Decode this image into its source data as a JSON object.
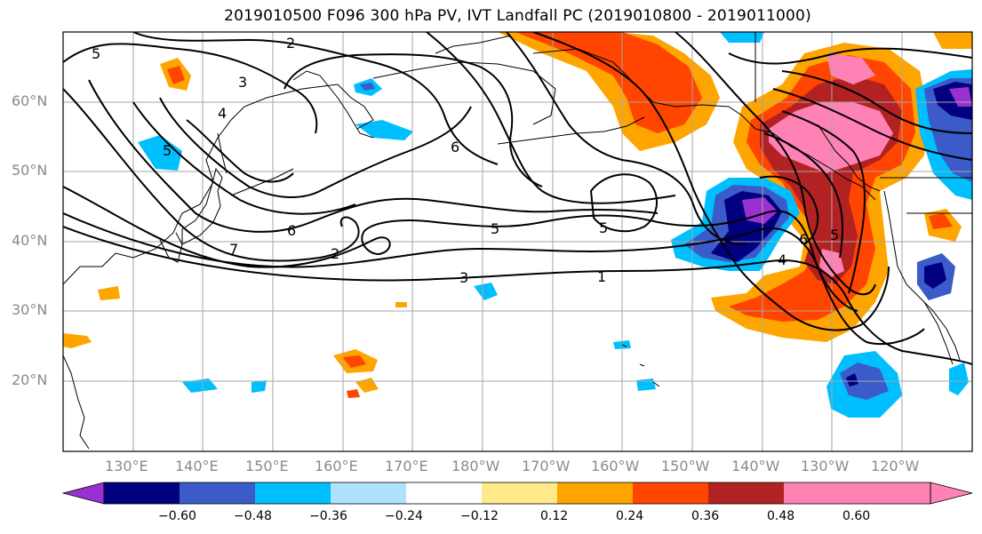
{
  "title": "2019010500 F096 300 hPa PV, IVT Landfall PC (2019010800 - 2019011000)",
  "latitude_labels": [
    "60°N",
    "50°N",
    "40°N",
    "30°N",
    "20°N"
  ],
  "longitude_labels": [
    "130°E",
    "140°E",
    "150°E",
    "160°E",
    "170°E",
    "180°W",
    "170°W",
    "160°W",
    "150°W",
    "140°W",
    "130°W",
    "120°W"
  ],
  "contour_labels": [
    "5",
    "2",
    "3",
    "4",
    "5",
    "6",
    "5",
    "5",
    "2",
    "7",
    "6",
    "3",
    "1",
    "6",
    "4",
    "5"
  ],
  "colorbar": {
    "tick_labels": [
      "−0.60",
      "−0.48",
      "−0.36",
      "−0.24",
      "−0.12",
      "0.12",
      "0.24",
      "0.36",
      "0.48",
      "0.60"
    ],
    "colors": [
      "#9b30d0",
      "#000080",
      "#3a5bc8",
      "#00bfff",
      "#b0e2ff",
      "#ffffff",
      "#ffe98a",
      "#ffa500",
      "#ff4500",
      "#b22222",
      "#ff82b4",
      "#ff82b4"
    ]
  },
  "colors": {
    "pv_contour": "#000000",
    "grid": "#a6a6a6",
    "coast": "#000000"
  }
}
